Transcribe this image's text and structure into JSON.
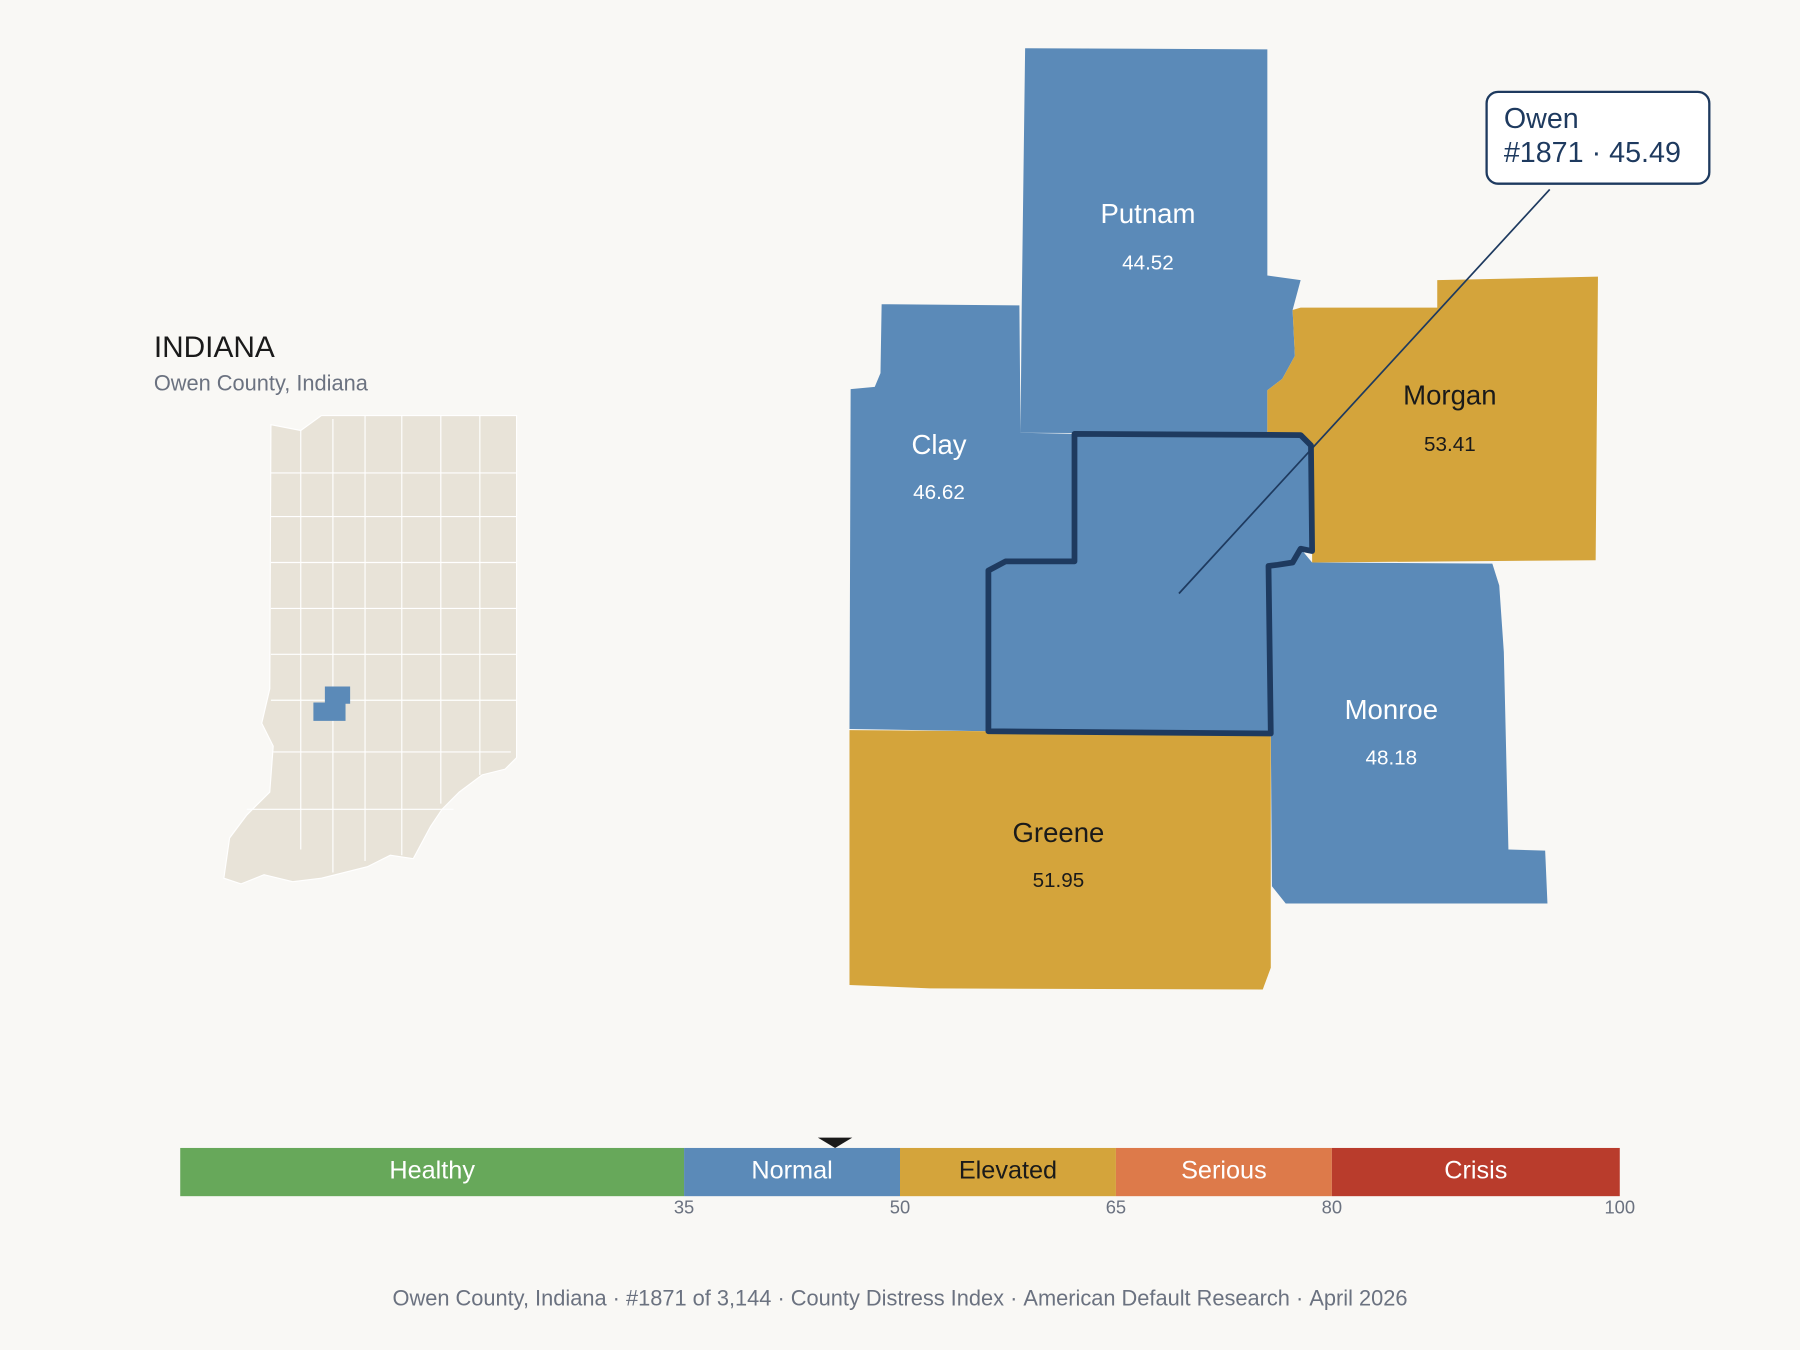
{
  "header": {
    "title": "INDIANA",
    "subtitle": "Owen County, Indiana"
  },
  "callout": {
    "name": "Owen",
    "rank": "#1871",
    "separator": "·",
    "score": 45.49,
    "color": "#5b8ab8"
  },
  "counties": [
    {
      "name": "Putnam",
      "value": 44.52,
      "color": "#5b8ab8"
    },
    {
      "name": "Clay",
      "value": 46.62,
      "color": "#5b8ab8"
    },
    {
      "name": "Morgan",
      "value": 53.41,
      "color": "#d4a43b"
    },
    {
      "name": "Monroe",
      "value": 48.18,
      "color": "#5b8ab8"
    },
    {
      "name": "Greene",
      "value": 51.95,
      "color": "#d4a43b"
    }
  ],
  "scale": {
    "xlim": [
      0,
      100
    ],
    "ticks": [
      35,
      50,
      65,
      80,
      100
    ],
    "bands": [
      {
        "label": "Healthy",
        "color": "#67a85a"
      },
      {
        "label": "Normal",
        "color": "#5b8ab8"
      },
      {
        "label": "Elevated",
        "color": "#d4a43b"
      },
      {
        "label": "Serious",
        "color": "#dd7a4a"
      },
      {
        "label": "Crisis",
        "color": "#b93c2c"
      }
    ]
  },
  "footer": {
    "separator": "·",
    "items": [
      "Owen County, Indiana",
      "#1871 of 3,144",
      "County Distress Index",
      "American Default Research",
      "April 2026"
    ]
  }
}
